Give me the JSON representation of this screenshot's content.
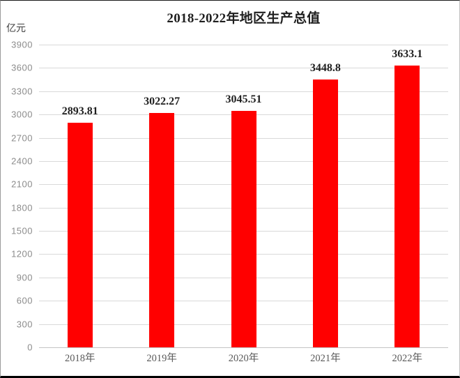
{
  "chart": {
    "title": "2018-2022年地区生产总值",
    "unit_label": "亿元"
  },
  "chart_data": {
    "type": "bar",
    "title": "2018-2022年地区生产总值",
    "xlabel": "",
    "ylabel": "亿元",
    "categories": [
      "2018年",
      "2019年",
      "2020年",
      "2021年",
      "2022年"
    ],
    "values": [
      2893.81,
      3022.27,
      3045.51,
      3448.8,
      3633.1
    ],
    "data_labels": [
      "2893.81",
      "3022.27",
      "3045.51",
      "3448.8",
      "3633.1"
    ],
    "ylim": [
      0,
      3900
    ],
    "ytick_step": 300,
    "yticks": [
      0,
      300,
      600,
      900,
      1200,
      1500,
      1800,
      2100,
      2400,
      2700,
      3000,
      3300,
      3600,
      3900
    ],
    "grid": true,
    "legend": false,
    "colors": {
      "bar": "#ff0000",
      "gridline": "#d9d9d9",
      "baseline": "#c3c3c3",
      "tick_label": "#8c8c8c",
      "category_label": "#595959",
      "data_label": "#1f1f1f",
      "title": "#1f1f1f"
    }
  }
}
